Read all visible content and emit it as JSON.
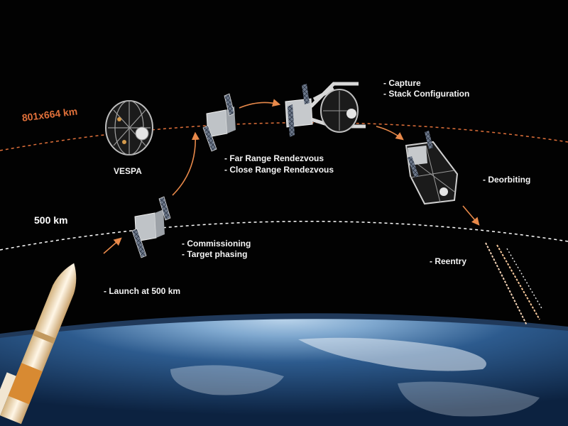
{
  "orbits": {
    "high": {
      "label": "801x664 km",
      "color": "#e0703a"
    },
    "low": {
      "label": "500 km",
      "color": "#ffffff"
    }
  },
  "spacecraft": {
    "name": "VESPA"
  },
  "phases": {
    "launch": "- Launch at 500 km",
    "commissioning": "- Commissioning",
    "phasing": "- Target phasing",
    "far_rendezvous": "- Far Range Rendezvous",
    "close_rendezvous": "- Close Range Rendezvous",
    "capture": "- Capture",
    "stack": "- Stack Configuration",
    "deorbiting": "- Deorbiting",
    "reentry": "- Reentry"
  },
  "colors": {
    "arrow": "#e8894a",
    "space": "#020202",
    "earth_glow": "#6fb4ff"
  }
}
